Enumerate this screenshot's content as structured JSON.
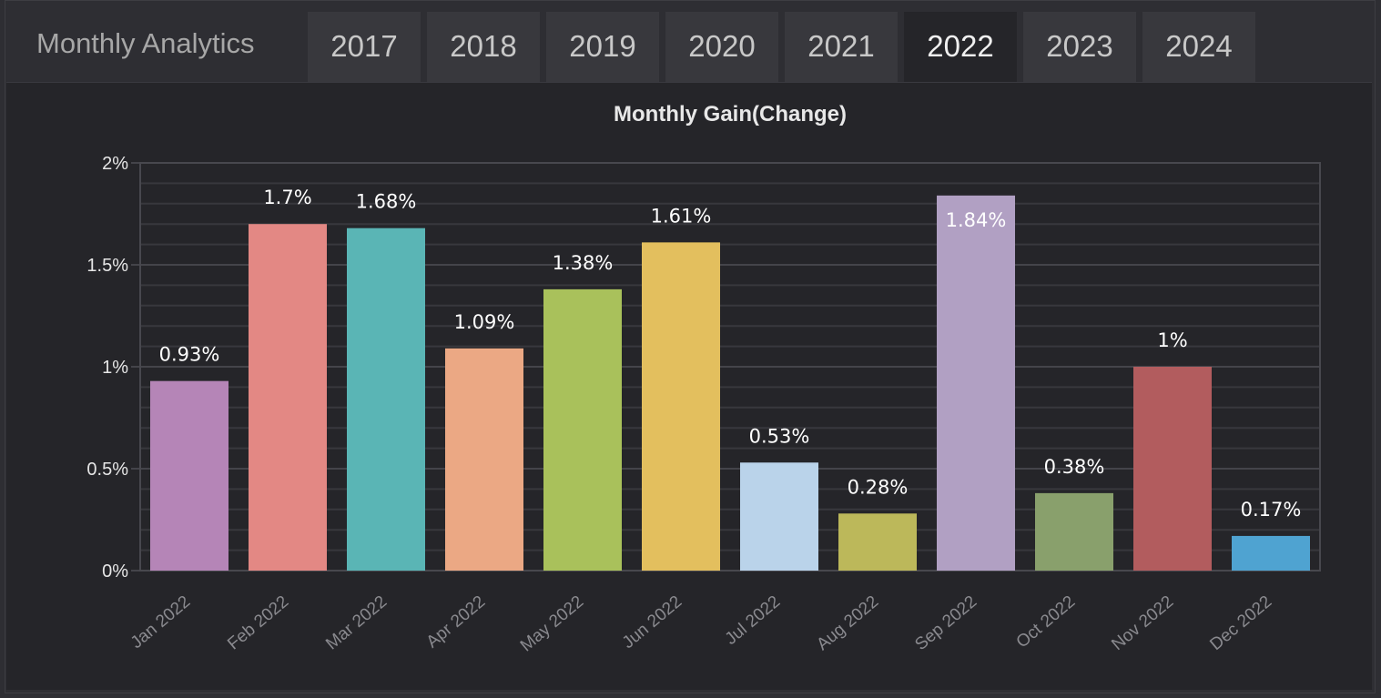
{
  "header": {
    "title": "Monthly Analytics",
    "tabs": [
      {
        "label": "2017",
        "active": false
      },
      {
        "label": "2018",
        "active": false
      },
      {
        "label": "2019",
        "active": false
      },
      {
        "label": "2020",
        "active": false
      },
      {
        "label": "2021",
        "active": false
      },
      {
        "label": "2022",
        "active": true
      },
      {
        "label": "2023",
        "active": false
      },
      {
        "label": "2024",
        "active": false
      }
    ]
  },
  "chart_data": {
    "type": "bar",
    "title": "Monthly Gain(Change)",
    "xlabel": "",
    "ylabel": "",
    "categories": [
      "Jan 2022",
      "Feb 2022",
      "Mar 2022",
      "Apr 2022",
      "May 2022",
      "Jun 2022",
      "Jul 2022",
      "Aug 2022",
      "Sep 2022",
      "Oct 2022",
      "Nov 2022",
      "Dec 2022"
    ],
    "values": [
      0.93,
      1.7,
      1.68,
      1.09,
      1.38,
      1.61,
      0.53,
      0.28,
      1.84,
      0.38,
      1,
      0.17
    ],
    "value_labels": [
      "0.93%",
      "1.7%",
      "1.68%",
      "1.09%",
      "1.38%",
      "1.61%",
      "0.53%",
      "0.28%",
      "1.84%",
      "0.38%",
      "1%",
      "0.17%"
    ],
    "ylim": [
      0,
      2
    ],
    "yticks": [
      {
        "value": 0,
        "label": "0%"
      },
      {
        "value": 0.5,
        "label": "0.5%"
      },
      {
        "value": 1,
        "label": "1%"
      },
      {
        "value": 1.5,
        "label": "1.5%"
      },
      {
        "value": 2,
        "label": "2%"
      }
    ],
    "minor_grid_step": 0.1,
    "grid": true,
    "legend": "none",
    "colors": [
      "#b585b7",
      "#e38884",
      "#5ab5b5",
      "#eba884",
      "#a9c15b",
      "#e3bf5e",
      "#bad3ea",
      "#bcb85a",
      "#b1a0c3",
      "#89a06c",
      "#b25c5e",
      "#4fa3d1"
    ]
  }
}
